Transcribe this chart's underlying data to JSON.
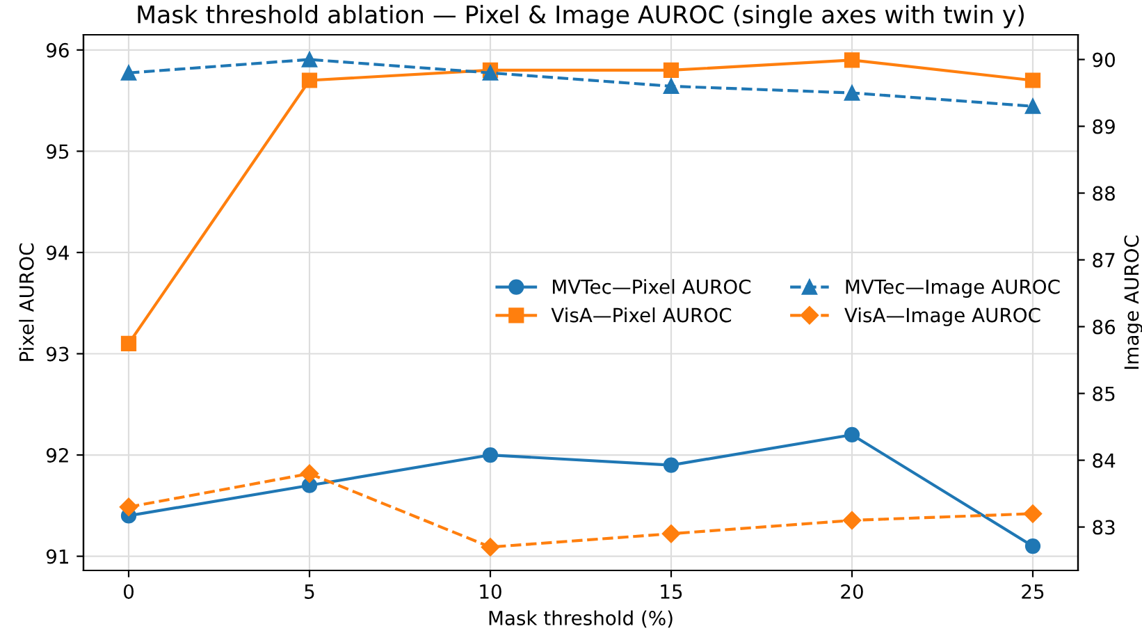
{
  "chart_data": {
    "type": "line",
    "title": "Mask threshold ablation — Pixel & Image AUROC (single axes with twin y)",
    "xlabel": "Mask threshold (%)",
    "ylabel": "Pixel AUROC",
    "y2label": "Image AUROC",
    "x": [
      0,
      5,
      10,
      15,
      20,
      25
    ],
    "series": [
      {
        "name": "MVTec—Pixel AUROC",
        "color": "#1f77b4",
        "values": [
          91.4,
          91.7,
          92.0,
          91.9,
          92.2,
          91.1
        ],
        "marker": "circle",
        "line_style": "solid"
      },
      {
        "name": "VisA—Pixel AUROC",
        "color": "#ff7f0e",
        "values": [
          93.1,
          95.7,
          95.8,
          95.8,
          95.9,
          95.7
        ],
        "marker": "square",
        "line_style": "solid"
      },
      {
        "name": "MVTec—Image AUROC",
        "color": "#1f77b4",
        "values": [
          89.8,
          90.0,
          89.8,
          89.6,
          89.5,
          89.3
        ],
        "marker": "triangle",
        "line_style": "dashed",
        "axis": "y2"
      },
      {
        "name": "VisA—Image AUROC",
        "color": "#ff7f0e",
        "values": [
          83.3,
          83.8,
          82.7,
          82.9,
          83.1,
          83.2
        ],
        "marker": "diamond",
        "line_style": "dashed",
        "axis": "y2"
      }
    ],
    "xlim": [
      -1.25,
      26.25
    ],
    "xticks": [
      0,
      5,
      10,
      15,
      20,
      25
    ],
    "ylim": [
      90.86,
      96.15
    ],
    "yticks": [
      91,
      92,
      93,
      94,
      95,
      96
    ],
    "y2lim": [
      82.35,
      90.37
    ],
    "y2ticks": [
      83,
      84,
      85,
      86,
      87,
      88,
      89,
      90
    ],
    "grid": true,
    "legend": "right"
  }
}
